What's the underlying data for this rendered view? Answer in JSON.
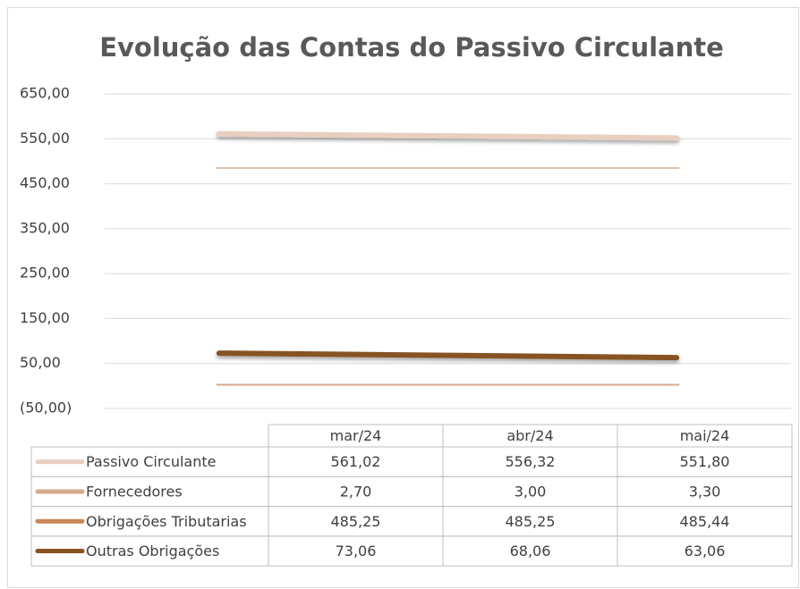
{
  "chart_data": {
    "type": "line",
    "title": "Evolução das  Contas do Passivo Circulante",
    "categories": [
      "mar/24",
      "abr/24",
      "mai/24"
    ],
    "series": [
      {
        "name": "Passivo Circulante",
        "color": "#e8cfbf",
        "values": [
          561.02,
          556.32,
          551.8
        ],
        "value_labels": [
          "561,02",
          "556,32",
          "551,80"
        ]
      },
      {
        "name": "Fornecedores",
        "color": "#d6ab8d",
        "values": [
          2.7,
          3.0,
          3.3
        ],
        "value_labels": [
          "2,70",
          "3,00",
          "3,30"
        ]
      },
      {
        "name": "Obrigações Tributarias",
        "color": "#c98657",
        "values": [
          485.25,
          485.25,
          485.44
        ],
        "value_labels": [
          "485,25",
          "485,25",
          "485,44"
        ]
      },
      {
        "name": "Outras Obrigações",
        "color": "#875222",
        "values": [
          73.06,
          68.06,
          63.06
        ],
        "value_labels": [
          "73,06",
          "68,06",
          "63,06"
        ]
      }
    ],
    "ylim": [
      -50,
      650
    ],
    "yticks": [
      {
        "value": -50,
        "label": "(50,00)"
      },
      {
        "value": 50,
        "label": "50,00"
      },
      {
        "value": 150,
        "label": "150,00"
      },
      {
        "value": 250,
        "label": "250,00"
      },
      {
        "value": 350,
        "label": "350,00"
      },
      {
        "value": 450,
        "label": "450,00"
      },
      {
        "value": 550,
        "label": "550,00"
      },
      {
        "value": 650,
        "label": "650,00"
      }
    ],
    "grid": true
  }
}
